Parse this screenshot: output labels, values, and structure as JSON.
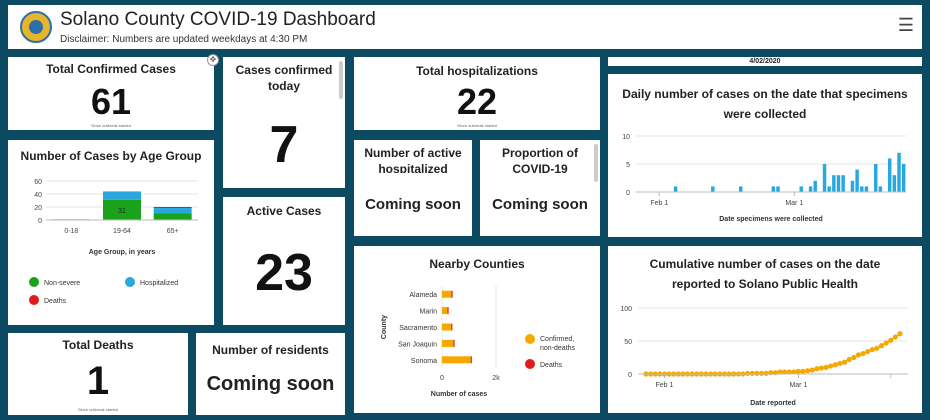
{
  "header": {
    "title": "Solano County COVID-19 Dashboard",
    "subtitle": "Disclaimer: Numbers are updated weekdays at 4:30 PM",
    "menu_icon": "hamburger-menu-icon"
  },
  "total_confirmed": {
    "title": "Total Confirmed Cases",
    "value": "61",
    "note": "Since outbreak started"
  },
  "confirmed_today": {
    "title": "Cases confirmed today",
    "value": "7"
  },
  "total_hosp": {
    "title": "Total hospitalizations",
    "value": "22",
    "note": "Since outbreak started"
  },
  "date_bar": {
    "text": "4/02/2020"
  },
  "active_hosp": {
    "title": "Number of active hospitalized cases",
    "value": "Coming soon"
  },
  "proportion": {
    "title": "Proportion of COVID-19",
    "value": "Coming soon"
  },
  "active_cases": {
    "title": "Active Cases",
    "value": "23"
  },
  "total_deaths": {
    "title": "Total Deaths",
    "value": "1",
    "note": "Since outbreak started"
  },
  "residents": {
    "title": "Number of residents",
    "value": "Coming soon"
  },
  "colors": {
    "green": "#1aa31a",
    "blue": "#29a8e0",
    "red": "#e31b1b",
    "orange": "#f5a800",
    "header_bg": "#0b4a60"
  },
  "chart_data": [
    {
      "id": "age",
      "type": "bar",
      "title": "Number of Cases by Age Group",
      "xlabel": "Age Group, in years",
      "ylabel": "",
      "categories": [
        "0-18",
        "19-64",
        "65+"
      ],
      "series": [
        {
          "name": "Non-severe",
          "values": [
            1,
            31,
            10
          ]
        },
        {
          "name": "Hospitalized",
          "values": [
            0,
            13,
            9
          ]
        },
        {
          "name": "Deaths",
          "values": [
            0,
            0,
            1
          ]
        }
      ],
      "data_labels": [
        "",
        "31",
        ""
      ],
      "yticks": [
        "0",
        "20",
        "40",
        "60"
      ],
      "ylim": [
        0,
        60
      ],
      "legend": "bottom"
    },
    {
      "id": "daily",
      "type": "bar",
      "title": "Daily number of cases on the date that specimens were collected",
      "xlabel": "Date specimens were collected",
      "ylabel": "",
      "xtick_labels": [
        "Feb 1",
        "Mar 1"
      ],
      "yticks": [
        "0",
        "5",
        "10"
      ],
      "ylim": [
        0,
        10
      ],
      "values": [
        0,
        0,
        0,
        0,
        0,
        0,
        0,
        0,
        1,
        0,
        0,
        0,
        0,
        0,
        0,
        0,
        1,
        0,
        0,
        0,
        0,
        0,
        1,
        0,
        0,
        0,
        0,
        0,
        0,
        1,
        1,
        0,
        0,
        0,
        0,
        1,
        0,
        1,
        2,
        0,
        5,
        1,
        3,
        3,
        3,
        0,
        2,
        4,
        1,
        1,
        0,
        5,
        1,
        0,
        6,
        3,
        7,
        5
      ]
    },
    {
      "id": "nearby",
      "type": "bar",
      "orientation": "horizontal",
      "title": "Nearby Counties",
      "xlabel": "Number of cases",
      "ylabel": "County",
      "categories": [
        "Alameda",
        "Marin",
        "Sacramento",
        "San Joaquin",
        "Sonoma"
      ],
      "series": [
        {
          "name": "Confirmed, non-deaths",
          "values": [
            350,
            200,
            340,
            420,
            1060
          ]
        },
        {
          "name": "Deaths",
          "values": [
            10,
            5,
            10,
            15,
            30
          ]
        }
      ],
      "xticks": [
        "0",
        "2k"
      ],
      "xlim": [
        0,
        2000
      ],
      "legend": "right"
    },
    {
      "id": "cumulative",
      "type": "line",
      "title": "Cumulative number of cases on the date reported to Solano Public Health",
      "xlabel": "Date reported",
      "ylabel": "",
      "xtick_labels": [
        "Feb 1",
        "Mar 1"
      ],
      "yticks": [
        "0",
        "50",
        "100"
      ],
      "ylim": [
        0,
        100
      ],
      "values": [
        0,
        0,
        0,
        0,
        0,
        0,
        0,
        0,
        0,
        0,
        0,
        0,
        0,
        0,
        0,
        0,
        0,
        0,
        0,
        0,
        0,
        0,
        1,
        1,
        1,
        1,
        1,
        2,
        2,
        3,
        3,
        3,
        3,
        4,
        4,
        5,
        6,
        8,
        9,
        10,
        12,
        14,
        16,
        18,
        22,
        25,
        29,
        31,
        34,
        37,
        39,
        43,
        47,
        51,
        56,
        61
      ]
    }
  ]
}
